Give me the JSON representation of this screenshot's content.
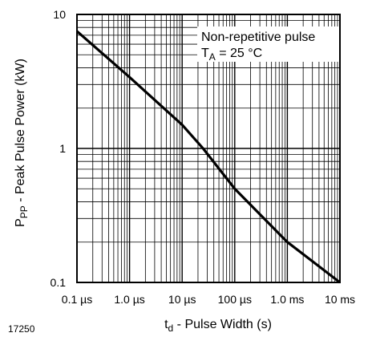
{
  "chart_data": {
    "type": "line",
    "x_scale": "log",
    "y_scale": "log",
    "xlim": [
      1e-07,
      0.01
    ],
    "ylim": [
      0.1,
      10
    ],
    "grid": true,
    "x_tick_values": [
      1e-07,
      1e-06,
      1e-05,
      0.0001,
      0.001,
      0.01
    ],
    "x_tick_labels": [
      "0.1 µs",
      "1.0 µs",
      "10 µs",
      "100 µs",
      "1.0 ms",
      "10 ms"
    ],
    "y_tick_values": [
      0.1,
      1,
      10
    ],
    "y_tick_labels": [
      "0.1",
      "1",
      "10"
    ],
    "ylabel": {
      "main": "P",
      "sub": "PP",
      "rest": " - Peak Pulse Power (kW)"
    },
    "xlabel": {
      "main": "t",
      "sub": "d",
      "rest": " - Pulse Width (s)"
    },
    "annotation": {
      "line1": "Non-repetitive pulse",
      "line2_main": "T",
      "line2_sub": "A",
      "line2_rest": " = 25 °C"
    },
    "series": [
      {
        "x": [
          1e-07,
          1e-06,
          1e-05,
          2.5e-05,
          0.0001,
          0.001,
          0.01
        ],
        "y": [
          7.5,
          3.4,
          1.5,
          1.0,
          0.5,
          0.2,
          0.1
        ],
        "color": "#000000"
      }
    ]
  },
  "figure_id": "17250"
}
